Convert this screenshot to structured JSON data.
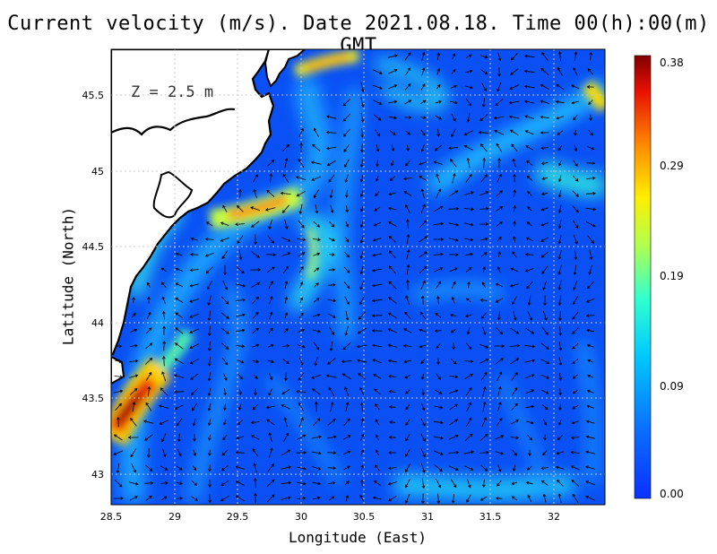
{
  "title": "Current velocity (m/s). Date 2021.08.18. Time 00(h):00(m) GMT",
  "xlabel": "Longitude (East)",
  "ylabel": "Latitude (North)",
  "depth_label": "Z = 2.5 m",
  "colors": {
    "land": "#ffffff",
    "coastline": "#000000",
    "water_low": "#0a50f5",
    "grid": "#bbbbbb",
    "arrows": "#000000"
  },
  "colorbar": {
    "min": 0.0,
    "max": 0.38,
    "tick_labels": [
      "0.38",
      "0.29",
      "0.19",
      "0.09",
      "0.00"
    ],
    "tick_values": [
      0.38,
      0.29,
      0.19,
      0.09,
      0.0
    ],
    "colormap": "jet"
  },
  "chart_data": {
    "type": "heatmap",
    "title": "Current velocity (m/s). Date 2021.08.18. Time 00(h):00(m) GMT",
    "xlabel": "Longitude (East)",
    "ylabel": "Latitude (North)",
    "xlim": [
      28.5,
      32.4
    ],
    "ylim": [
      42.8,
      45.8
    ],
    "x_tick_labels": [
      "28.5",
      "29",
      "29.5",
      "30",
      "30.5",
      "31",
      "31.5",
      "32"
    ],
    "x_ticks": [
      28.5,
      29,
      29.5,
      30,
      30.5,
      31,
      31.5,
      32
    ],
    "y_tick_labels": [
      "43",
      "43.5",
      "44",
      "44.5",
      "45",
      "45.5"
    ],
    "y_ticks": [
      43,
      43.5,
      44,
      44.5,
      45,
      45.5
    ],
    "grid": true,
    "value_range": [
      0.0,
      0.38
    ],
    "features": [
      {
        "lon": 28.65,
        "lat": 43.45,
        "speed": 0.36
      },
      {
        "lon": 29.6,
        "lat": 44.75,
        "speed": 0.33
      },
      {
        "lon": 30.1,
        "lat": 45.65,
        "speed": 0.25
      },
      {
        "lon": 32.35,
        "lat": 45.5,
        "speed": 0.28
      },
      {
        "lon": 30.1,
        "lat": 44.55,
        "speed": 0.17
      },
      {
        "lon": 32.2,
        "lat": 45.0,
        "speed": 0.13
      },
      {
        "lon": 31.5,
        "lat": 42.9,
        "speed": 0.12
      }
    ]
  }
}
